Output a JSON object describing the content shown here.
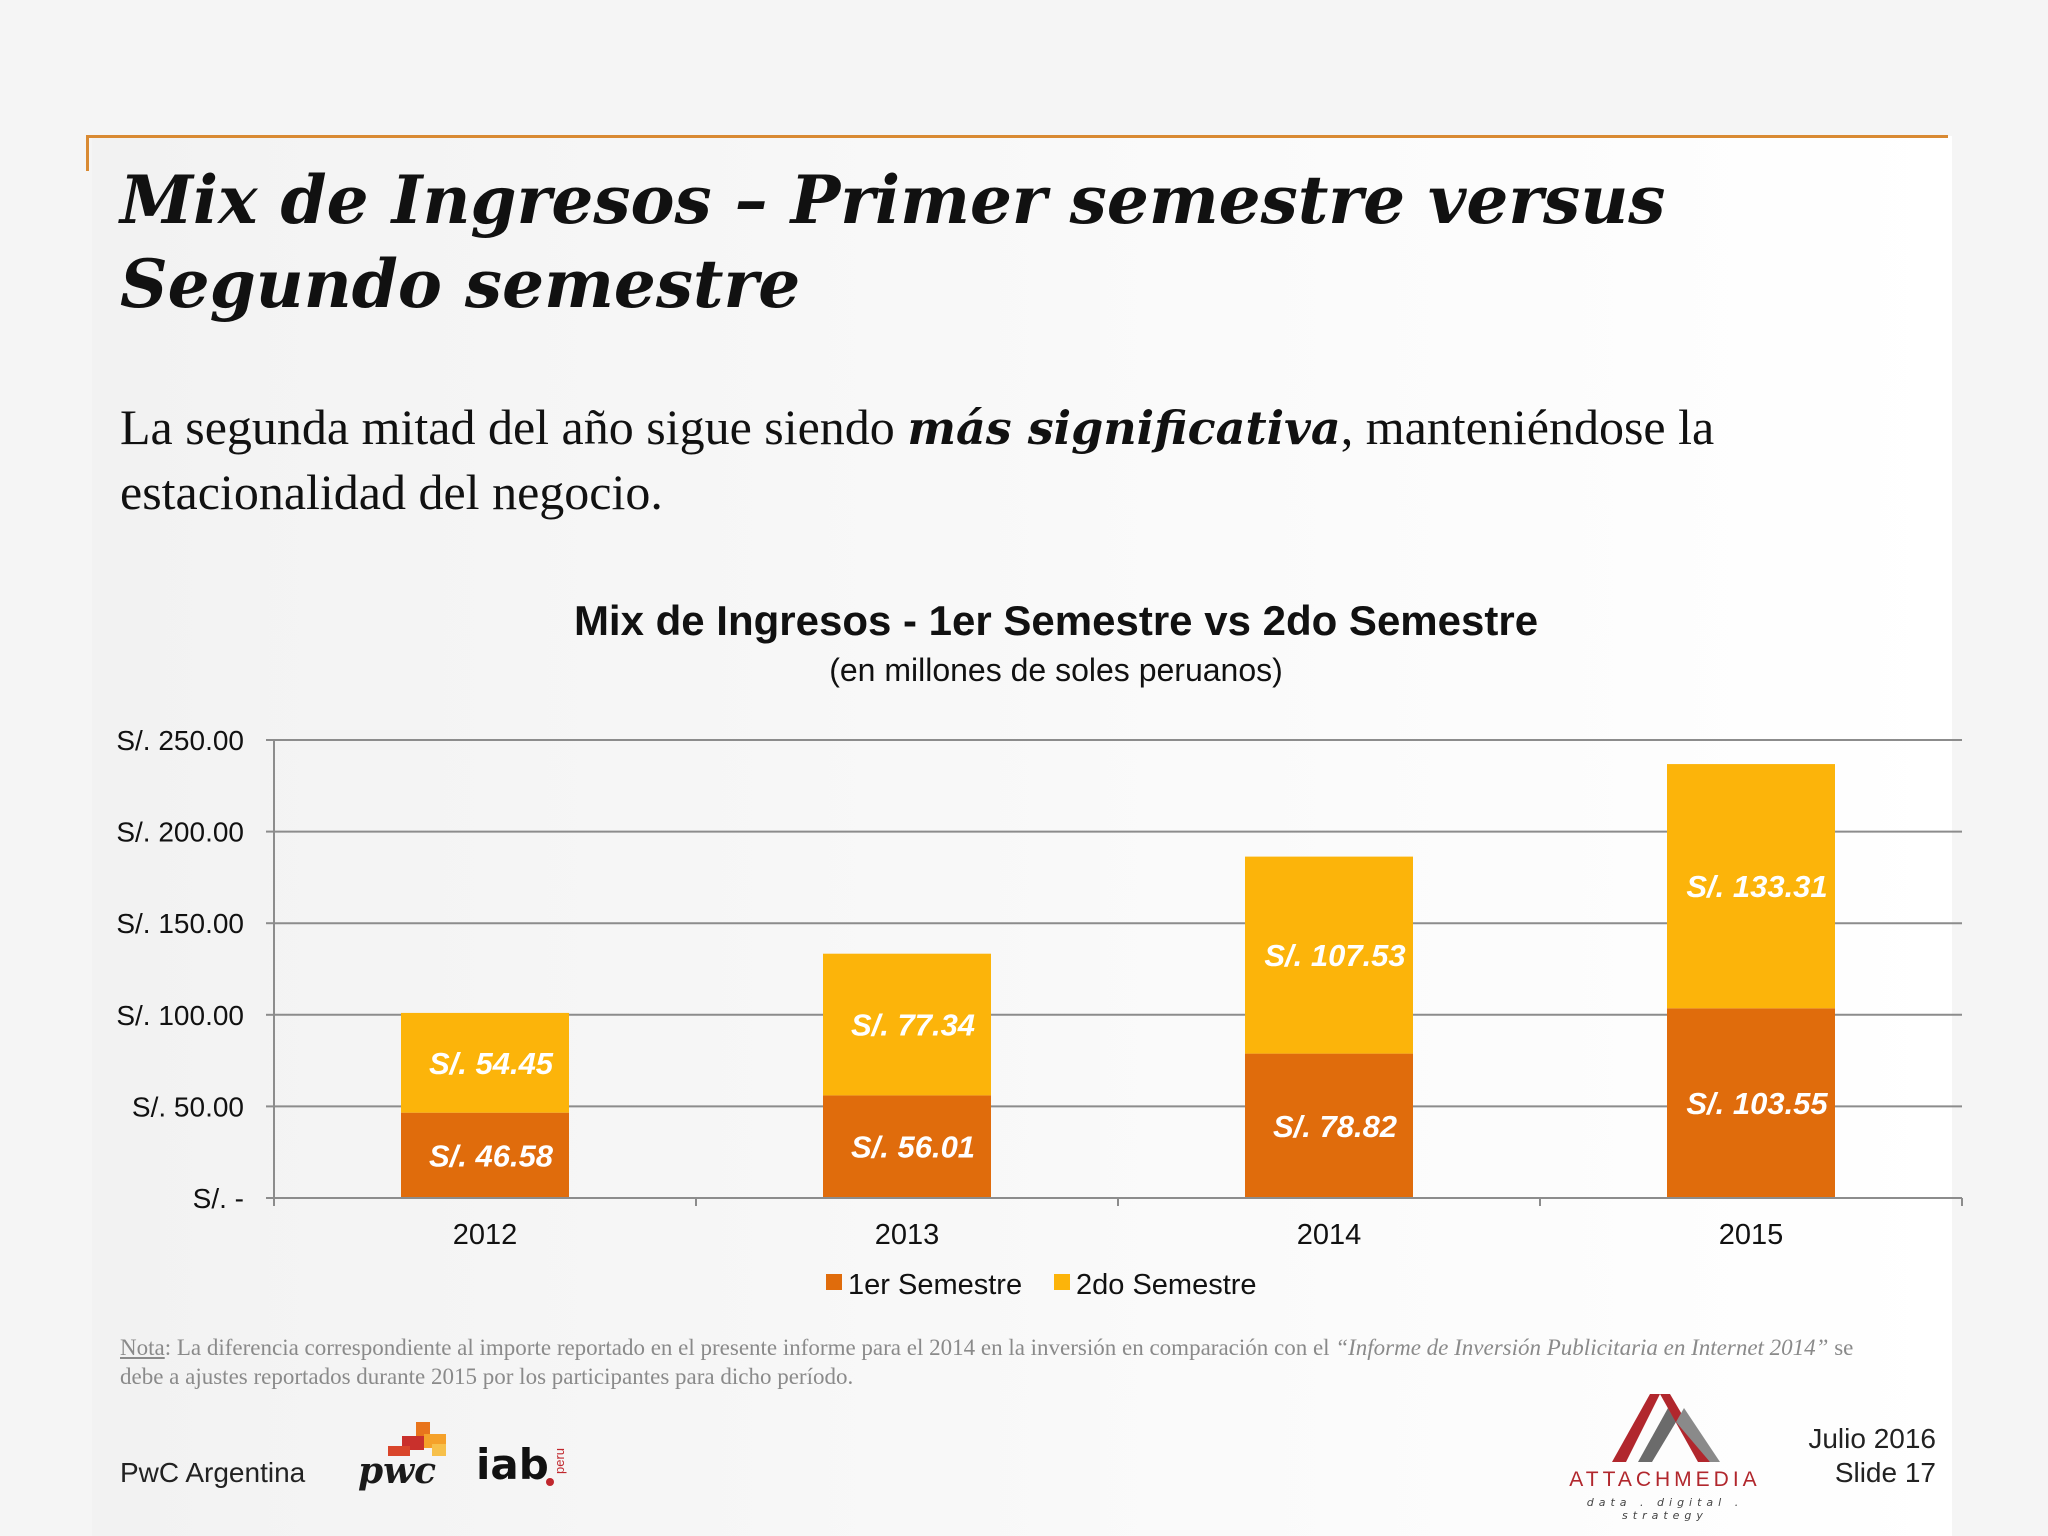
{
  "slide": {
    "title": "Mix de Ingresos – Primer semestre versus Segundo semestre",
    "lead_before": "La segunda mitad del año sigue siendo ",
    "lead_emphasis": "más significativa",
    "lead_after": ", manteniéndose la estacionalidad del negocio."
  },
  "note": {
    "label": "Nota",
    "text_1": ": La diferencia correspondiente al importe reportado en el presente informe para el 2014 en la inversión en comparación con el ",
    "report_title": "“Informe de Inversión Publicitaria en Internet 2014”",
    "text_2": " se debe a ajustes reportados durante 2015 por los participantes para dicho período."
  },
  "footer": {
    "left": "PwC Argentina",
    "date": "Julio 2016",
    "slide_number": "Slide 17",
    "pwc_logo": "pwc",
    "iab_logo": "iab",
    "iab_suffix": "peru",
    "attach_name": "ATTACHMEDIA",
    "attach_tagline": "data . digital . strategy"
  },
  "colors": {
    "series1": "#e06c0c",
    "series2": "#fcb40a",
    "accent_rule": "#d98a33",
    "gridline": "#8c8c8c",
    "attach_red": "#b1272d",
    "pwc_orange": "#e8741c"
  },
  "chart_data": {
    "type": "bar",
    "stacked": true,
    "title": "Mix de Ingresos - 1er Semestre vs 2do Semestre",
    "subtitle": "(en millones de soles peruanos)",
    "categories": [
      "2012",
      "2013",
      "2014",
      "2015"
    ],
    "series": [
      {
        "name": "1er Semestre",
        "values": [
          46.58,
          56.01,
          78.82,
          103.55
        ],
        "labels": [
          "S/. 46.58",
          "S/. 56.01",
          "S/. 78.82",
          "S/. 103.55"
        ]
      },
      {
        "name": "2do Semestre",
        "values": [
          54.45,
          77.34,
          107.53,
          133.31
        ],
        "labels": [
          "S/. 54.45",
          "S/. 77.34",
          "S/. 107.53",
          "S/. 133.31"
        ]
      }
    ],
    "ylim": [
      0,
      250
    ],
    "yticks": [
      0,
      50,
      100,
      150,
      200,
      250
    ],
    "ytick_labels": [
      "S/. -",
      "S/. 50.00",
      "S/. 100.00",
      "S/. 150.00",
      "S/. 200.00",
      "S/. 250.00"
    ],
    "grid": true,
    "legend": "bottom"
  }
}
